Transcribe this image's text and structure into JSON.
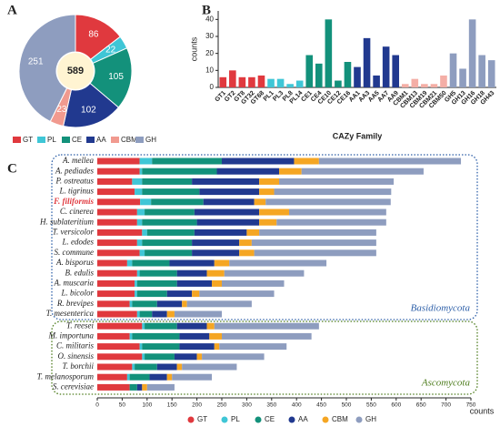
{
  "panel_labels": [
    "A",
    "B",
    "C"
  ],
  "chart_data": [
    {
      "type": "pie",
      "donut": true,
      "center_label": 589,
      "categories": [
        "GT",
        "PL",
        "CE",
        "AA",
        "CBM",
        "GH"
      ],
      "values": [
        86,
        22,
        105,
        102,
        23,
        251
      ],
      "colors": [
        "#e0393e",
        "#3fc6d6",
        "#13917b",
        "#21398f",
        "#f19a8f",
        "#8e9dbf"
      ]
    },
    {
      "type": "bar",
      "xlabel": "CAZy Family",
      "ylabel": "counts",
      "categories": [
        "GT1",
        "GT2",
        "GT8",
        "GT32",
        "GT68",
        "PL1",
        "PL3",
        "PL8",
        "PL14",
        "CE1",
        "CE4",
        "CE10",
        "CE12",
        "CE16",
        "AA1",
        "AA3",
        "AA5",
        "AA7",
        "AA9",
        "CBM1",
        "CBM13",
        "CBM19",
        "CBM21",
        "CBM50",
        "GH5",
        "GH13",
        "GH16",
        "GH18",
        "GH43"
      ],
      "values": [
        6,
        10,
        6,
        6,
        7,
        5,
        5,
        2,
        4,
        19,
        14,
        40,
        4,
        15,
        12,
        29,
        7,
        24,
        19,
        2,
        5,
        2,
        2,
        7,
        20,
        11,
        40,
        19,
        16
      ],
      "colors": [
        "#e0393e",
        "#e0393e",
        "#e0393e",
        "#e0393e",
        "#e0393e",
        "#3fc6d6",
        "#3fc6d6",
        "#3fc6d6",
        "#3fc6d6",
        "#13917b",
        "#13917b",
        "#13917b",
        "#13917b",
        "#13917b",
        "#21398f",
        "#21398f",
        "#21398f",
        "#21398f",
        "#21398f",
        "#f4aea6",
        "#f4aea6",
        "#f4aea6",
        "#f4aea6",
        "#f4aea6",
        "#8e9dbf",
        "#8e9dbf",
        "#8e9dbf",
        "#8e9dbf",
        "#8e9dbf"
      ],
      "ylim": [
        0,
        45
      ],
      "yticks": [
        0,
        10,
        20,
        30,
        40
      ]
    },
    {
      "type": "stacked_barh",
      "xlabel": "counts",
      "groups": [
        {
          "label": "Basidiomycota",
          "color": "#2d5fa8",
          "categories": [
            {
              "label": "A. mellea"
            },
            {
              "label": "A. pediades"
            },
            {
              "label": "P. ostreatus"
            },
            {
              "label": "L. tigrinus"
            },
            {
              "label": "F. filiformis",
              "highlight": true
            },
            {
              "label": "C. cinerea"
            },
            {
              "label": "H. sublateritium"
            },
            {
              "label": "T. versicolor"
            },
            {
              "label": "L. edodes"
            },
            {
              "label": "S. commune"
            },
            {
              "label": "A. bisporus"
            },
            {
              "label": "B. edulis"
            },
            {
              "label": "A. muscaria"
            },
            {
              "label": "L. bicolor"
            },
            {
              "label": "R. brevipes"
            },
            {
              "label": "T. mesenterica"
            }
          ]
        },
        {
          "label": "Ascomycota",
          "color": "#4e7d1e",
          "categories": [
            {
              "label": "T. reesei"
            },
            {
              "label": "M. importuna"
            },
            {
              "label": "C. militaris"
            },
            {
              "label": "O. sinensis"
            },
            {
              "label": "T. borchii"
            },
            {
              "label": "T. melanosporum"
            },
            {
              "label": "S. cerevisiae"
            }
          ]
        }
      ],
      "series": [
        {
          "name": "GT",
          "color": "#e0393e",
          "values": [
            85,
            85,
            70,
            75,
            86,
            80,
            80,
            90,
            80,
            85,
            60,
            80,
            75,
            75,
            65,
            80,
            90,
            65,
            85,
            90,
            70,
            60,
            65
          ]
        },
        {
          "name": "PL",
          "color": "#3fc6d6",
          "values": [
            25,
            5,
            20,
            15,
            22,
            15,
            10,
            10,
            10,
            10,
            10,
            5,
            5,
            5,
            5,
            5,
            5,
            5,
            5,
            5,
            5,
            5,
            0
          ]
        },
        {
          "name": "CE",
          "color": "#13917b",
          "values": [
            140,
            150,
            100,
            115,
            105,
            100,
            110,
            95,
            100,
            95,
            75,
            75,
            80,
            60,
            50,
            25,
            65,
            95,
            75,
            60,
            45,
            40,
            15
          ]
        },
        {
          "name": "AA",
          "color": "#21398f",
          "values": [
            145,
            125,
            135,
            120,
            102,
            130,
            125,
            105,
            95,
            95,
            90,
            60,
            70,
            50,
            50,
            30,
            60,
            60,
            70,
            45,
            40,
            35,
            10
          ]
        },
        {
          "name": "CBM",
          "color": "#f5a623",
          "values": [
            50,
            45,
            40,
            30,
            23,
            60,
            35,
            25,
            25,
            30,
            30,
            35,
            20,
            15,
            10,
            15,
            15,
            25,
            10,
            10,
            10,
            10,
            10
          ]
        },
        {
          "name": "GH",
          "color": "#8e9dbf",
          "values": [
            285,
            245,
            230,
            235,
            251,
            195,
            220,
            235,
            250,
            245,
            195,
            160,
            125,
            150,
            130,
            95,
            210,
            180,
            135,
            125,
            110,
            80,
            55
          ]
        }
      ],
      "xlim": [
        0,
        750
      ],
      "xticks": [
        0,
        50,
        100,
        150,
        200,
        250,
        300,
        350,
        400,
        450,
        500,
        550,
        600,
        650,
        700,
        750
      ]
    }
  ]
}
